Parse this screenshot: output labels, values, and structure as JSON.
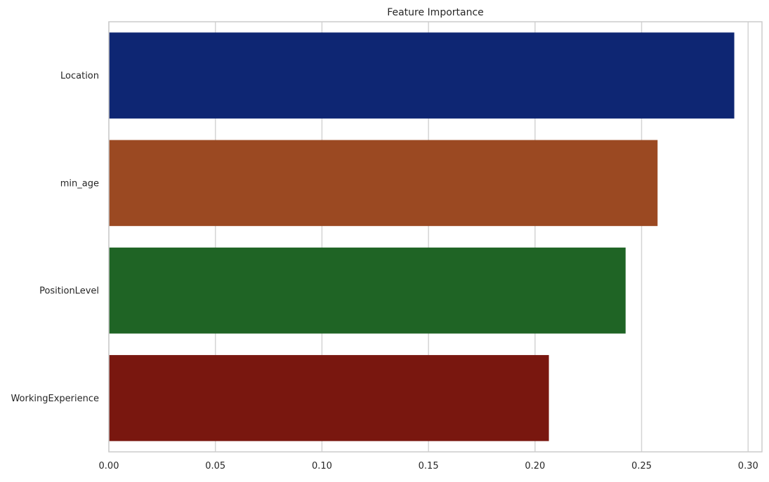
{
  "chart_data": {
    "type": "bar",
    "orientation": "horizontal",
    "title": "Feature Importance",
    "xlabel": "",
    "ylabel": "",
    "categories": [
      "Location",
      "min_age",
      "PositionLevel",
      "WorkingExperience"
    ],
    "values": [
      0.2935,
      0.2575,
      0.2425,
      0.2065
    ],
    "xlim": [
      0,
      0.3065
    ],
    "xticks": [
      0.0,
      0.05,
      0.1,
      0.15,
      0.2,
      0.25,
      0.3
    ],
    "xtick_labels": [
      "0.00",
      "0.05",
      "0.10",
      "0.15",
      "0.20",
      "0.25",
      "0.30"
    ],
    "grid": "vertical",
    "legend": "none",
    "colors": [
      "#0e2673",
      "#9b4922",
      "#1f6425",
      "#79170f"
    ],
    "grid_color": "#d4d4d4",
    "frame_color": "#cccccc"
  }
}
